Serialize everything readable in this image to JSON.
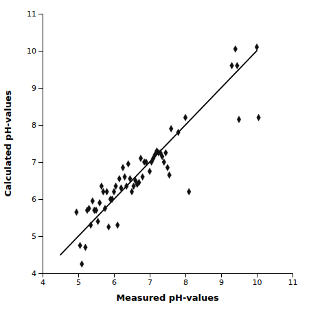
{
  "chart_data": {
    "type": "scatter",
    "xlabel": "Measured pH-values",
    "ylabel": "Calculated pH-values",
    "xlim": [
      4,
      11
    ],
    "ylim": [
      4,
      11
    ],
    "xticks": [
      4,
      5,
      6,
      7,
      8,
      9,
      10,
      11
    ],
    "yticks": [
      4,
      5,
      6,
      7,
      8,
      9,
      10,
      11
    ],
    "grid": false,
    "series": [
      {
        "type": "scatter",
        "marker": "diamond",
        "color": "#111111",
        "x": [
          4.95,
          5.05,
          5.1,
          5.2,
          5.25,
          5.3,
          5.35,
          5.4,
          5.45,
          5.5,
          5.55,
          5.6,
          5.65,
          5.7,
          5.75,
          5.8,
          5.85,
          5.9,
          5.95,
          6.0,
          6.05,
          6.1,
          6.15,
          6.2,
          6.25,
          6.3,
          6.35,
          6.4,
          6.45,
          6.5,
          6.55,
          6.6,
          6.65,
          6.7,
          6.75,
          6.8,
          6.85,
          6.9,
          7.0,
          7.05,
          7.1,
          7.15,
          7.2,
          7.25,
          7.3,
          7.35,
          7.4,
          7.45,
          7.5,
          7.55,
          7.6,
          7.8,
          8.0,
          8.1,
          9.3,
          9.4,
          9.45,
          9.5,
          10.0,
          10.05
        ],
        "values": [
          5.65,
          4.75,
          4.25,
          4.7,
          5.7,
          5.75,
          5.3,
          5.95,
          5.7,
          5.7,
          5.4,
          5.9,
          6.35,
          6.2,
          5.75,
          6.2,
          5.25,
          6.0,
          6.0,
          6.2,
          6.35,
          5.3,
          6.55,
          6.3,
          6.85,
          6.6,
          6.35,
          6.95,
          6.55,
          6.2,
          6.35,
          6.5,
          6.4,
          6.45,
          7.1,
          6.6,
          7.0,
          7.0,
          6.75,
          7.0,
          7.1,
          7.2,
          7.3,
          7.25,
          7.25,
          7.15,
          7.0,
          7.25,
          6.85,
          6.65,
          7.9,
          7.8,
          8.2,
          6.2,
          9.6,
          10.05,
          9.6,
          8.15,
          10.1,
          8.2
        ]
      },
      {
        "type": "line",
        "line_style": "solid",
        "color": "#000000",
        "x": [
          4.49,
          10.01
        ],
        "values": [
          4.490151,
          10.009599
        ]
      }
    ]
  }
}
